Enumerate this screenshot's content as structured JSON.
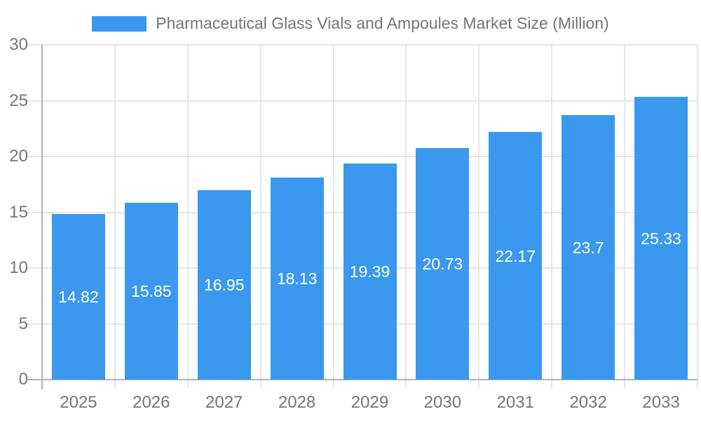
{
  "chart_data": {
    "type": "bar",
    "title": "Pharmaceutical Glass Vials and Ampoules Market Size (Million)",
    "categories": [
      "2025",
      "2026",
      "2027",
      "2028",
      "2029",
      "2030",
      "2031",
      "2032",
      "2033"
    ],
    "values": [
      14.82,
      15.85,
      16.95,
      18.13,
      19.39,
      20.73,
      22.17,
      23.7,
      25.33
    ],
    "value_labels": [
      "14.82",
      "15.85",
      "16.95",
      "18.13",
      "19.39",
      "20.73",
      "22.17",
      "23.7",
      "25.33"
    ],
    "xlabel": "",
    "ylabel": "",
    "ylim": [
      0,
      30
    ],
    "yticks": [
      "0",
      "5",
      "10",
      "15",
      "20",
      "25",
      "30"
    ],
    "grid": true,
    "legend_position": "top",
    "colors": {
      "bar": "#3A99EF",
      "value_label": "#FFFFFF",
      "axis_text": "#757575",
      "gridline": "#E6E6E6",
      "axis_line": "#B0B0B0",
      "background": "#FFFFFF"
    }
  }
}
